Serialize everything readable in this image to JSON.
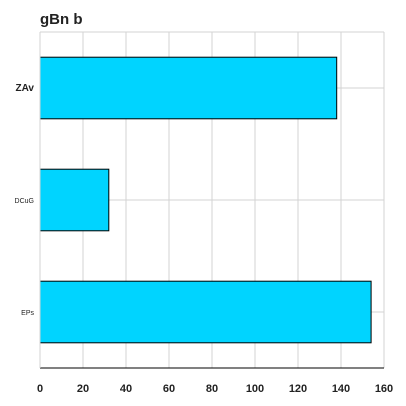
{
  "chart_data": {
    "type": "bar",
    "orientation": "horizontal",
    "title": "gBn b",
    "xlabel": "",
    "ylabel": "",
    "categories": [
      "ZAv",
      "DCuG",
      "EPs"
    ],
    "values": [
      138,
      32,
      154
    ],
    "xlim": [
      0,
      160
    ],
    "xticks": [
      0,
      20,
      40,
      60,
      80,
      100,
      120,
      140,
      160
    ],
    "grid": true,
    "bar_color": "#00d4ff",
    "bar_edge_color": "#000000",
    "grid_color": "#d3d3d3"
  }
}
